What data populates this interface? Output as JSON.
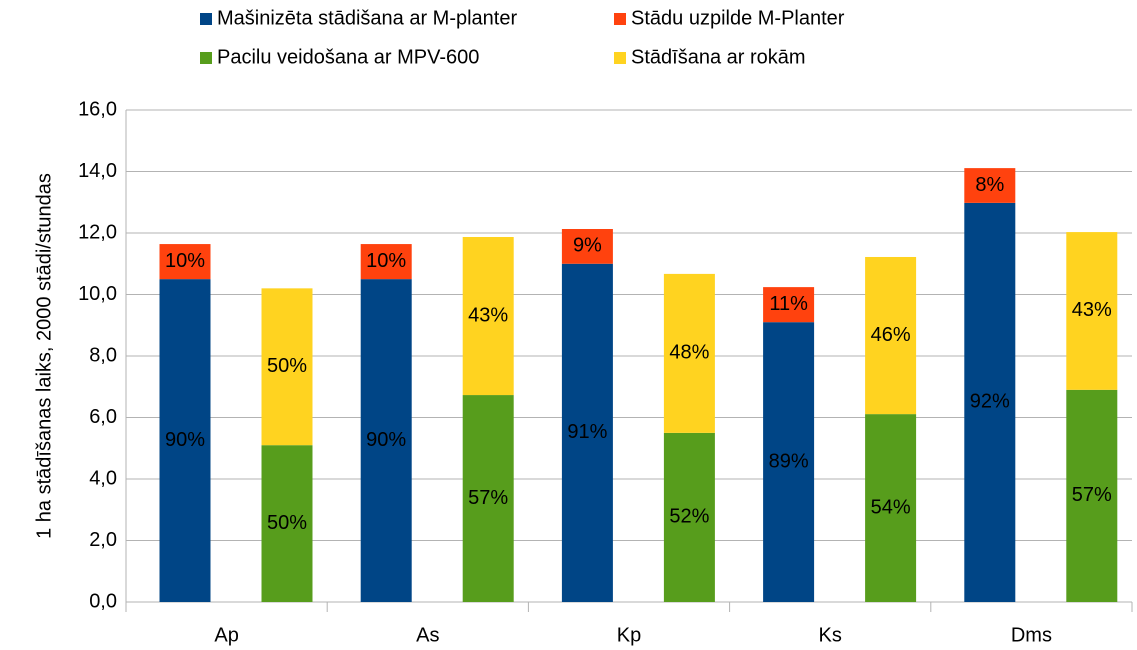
{
  "chart_data": {
    "type": "stacked_grouped_bar",
    "y_label": "1 ha stādīšanas laiks, 2000 stādi/stundas",
    "categories": [
      "Ap",
      "As",
      "Kp",
      "Ks",
      "Dms"
    ],
    "series": [
      {
        "name": "Mašinizēta stādišana ar M-planter",
        "color": "#004586",
        "stack": 0,
        "values": [
          10.5,
          10.5,
          11.0,
          9.1,
          12.98
        ],
        "percent_labels": [
          "90%",
          "90%",
          "91%",
          "89%",
          "92%"
        ]
      },
      {
        "name": "Stādu uzpilde M-Planter",
        "color": "#ff420e",
        "stack": 0,
        "values": [
          1.14,
          1.14,
          1.13,
          1.14,
          1.13
        ],
        "percent_labels": [
          "10%",
          "10%",
          "9%",
          "11%",
          "8%"
        ]
      },
      {
        "name": "Pacilu veidošana ar MPV-600",
        "color": "#579d1c",
        "stack": 1,
        "values": [
          5.1,
          6.73,
          5.5,
          6.11,
          6.9
        ],
        "percent_labels": [
          "50%",
          "57%",
          "52%",
          "54%",
          "57%"
        ]
      },
      {
        "name": "Stādīšana ar rokām",
        "color": "#ffd320",
        "stack": 1,
        "values": [
          5.1,
          5.14,
          5.17,
          5.11,
          5.13
        ],
        "percent_labels": [
          "50%",
          "43%",
          "48%",
          "46%",
          "43%"
        ]
      }
    ],
    "ylim": [
      0,
      16
    ],
    "yticks": [
      {
        "value": 0,
        "label": "0,0"
      },
      {
        "value": 2,
        "label": "2,0"
      },
      {
        "value": 4,
        "label": "4,0"
      },
      {
        "value": 6,
        "label": "6,0"
      },
      {
        "value": 8,
        "label": "8,0"
      },
      {
        "value": 10,
        "label": "10,0"
      },
      {
        "value": 12,
        "label": "12,0"
      },
      {
        "value": 14,
        "label": "14,0"
      },
      {
        "value": 16,
        "label": "16,0"
      }
    ],
    "grid": true
  }
}
